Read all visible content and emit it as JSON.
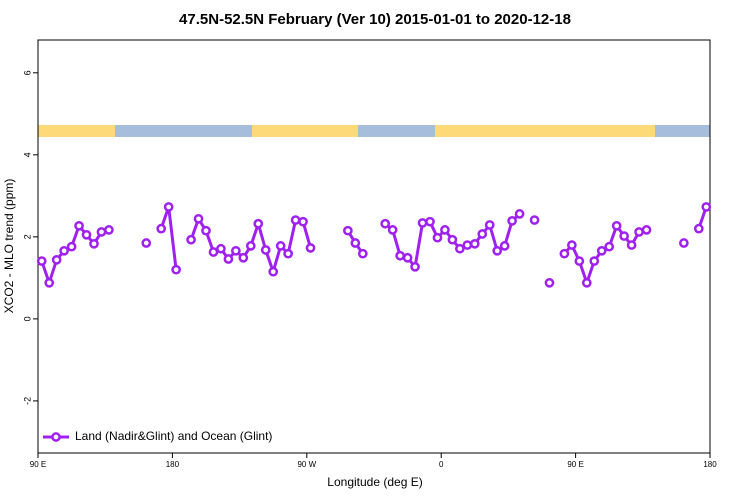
{
  "chart_data": {
    "type": "line",
    "title": "47.5N-52.5N February (Ver 10)   2015-01-01 to 2020-12-18",
    "x_label": "Longitude (deg E)",
    "y_label": "XCO2 - MLO trend (ppm)",
    "xlim": [
      90,
      540
    ],
    "ylim": [
      -3.27,
      6.8
    ],
    "xticks": [
      {
        "value": 90,
        "label": "90 E"
      },
      180,
      {
        "value": 270,
        "label": "90 W"
      },
      {
        "value": 360,
        "label": "0"
      },
      {
        "value": 450,
        "label": "90 E"
      },
      {
        "value": 540,
        "label": "180"
      }
    ],
    "yticks": [
      -2,
      0,
      2,
      4,
      6
    ],
    "legend": "lower left",
    "series": [
      {
        "name": "Land (Nadir&Glint) and Ocean (Glint)",
        "color": "#a020f0",
        "x": [
          92.5,
          97.5,
          102.5,
          107.5,
          112.5,
          117.5,
          122.5,
          127.5,
          132.5,
          137.5,
          142.5,
          162.5,
          167.5,
          172.5,
          177.5,
          182.5,
          187.5,
          192.5,
          197.5,
          202.5,
          207.5,
          212.5,
          217.5,
          222.5,
          227.5,
          232.5,
          237.5,
          242.5,
          247.5,
          252.5,
          257.5,
          262.5,
          267.5,
          272.5,
          277.5,
          297.5,
          302.5,
          307.5,
          312.5,
          322.5,
          327.5,
          332.5,
          337.5,
          342.5,
          347.5,
          352.5,
          357.5,
          362.5,
          367.5,
          372.5,
          377.5,
          382.5,
          387.5,
          392.5,
          397.5,
          402.5,
          407.5,
          412.5,
          417.5,
          422.5,
          427.5,
          432.5,
          437.5,
          442.5,
          447.5,
          452.5,
          457.5,
          462.5,
          467.5,
          472.5,
          477.5,
          482.5,
          487.5,
          492.5,
          497.5,
          502.5,
          522.5,
          527.5,
          532.5,
          537.5
        ],
        "values": [
          1.41,
          0.88,
          1.44,
          1.66,
          1.76,
          2.27,
          2.05,
          1.83,
          2.12,
          2.17,
          null,
          1.85,
          null,
          2.2,
          2.73,
          1.2,
          null,
          1.93,
          2.44,
          2.15,
          1.63,
          1.71,
          1.46,
          1.66,
          1.49,
          1.78,
          2.32,
          1.68,
          1.15,
          1.78,
          1.59,
          2.41,
          2.37,
          1.73,
          null,
          2.15,
          1.85,
          1.59,
          null,
          2.32,
          2.17,
          1.54,
          1.49,
          1.27,
          2.34,
          2.37,
          1.98,
          2.17,
          1.93,
          1.71,
          1.8,
          1.83,
          2.07,
          2.29,
          1.66,
          1.78,
          2.39,
          2.56,
          null,
          2.41,
          null,
          0.88,
          null,
          1.59,
          1.8,
          1.41,
          0.88,
          1.41,
          1.66,
          1.76,
          2.27,
          2.02,
          1.8,
          2.12,
          2.17,
          null,
          1.85,
          null,
          2.2,
          2.73
        ]
      }
    ]
  }
}
